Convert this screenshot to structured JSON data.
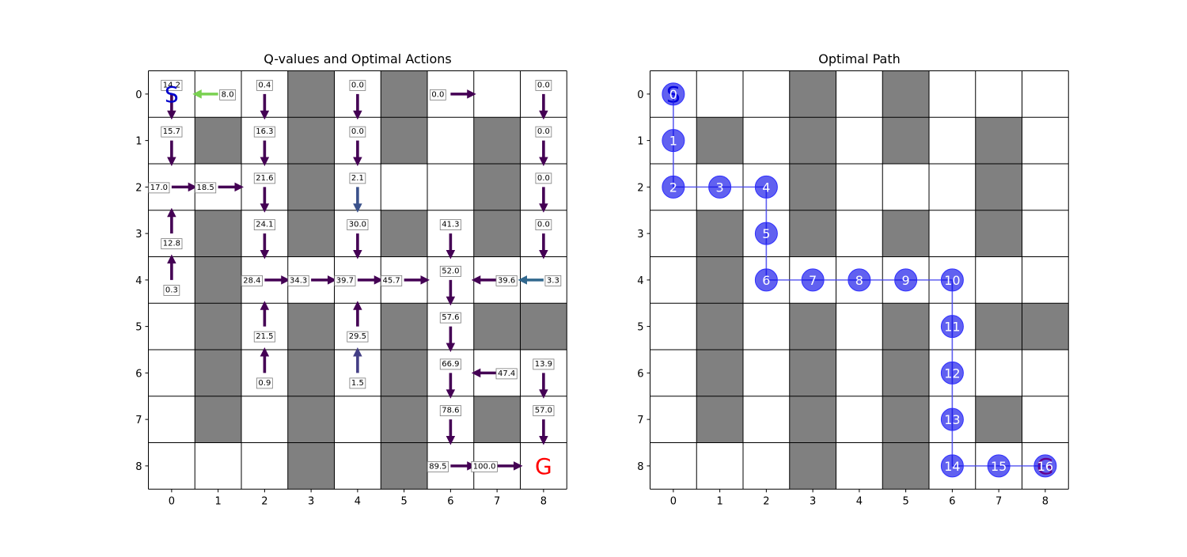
{
  "chart_data": [
    {
      "type": "grid",
      "title": "Q-values and Optimal Actions",
      "grid_size": [
        9,
        9
      ],
      "x_ticks": [
        "0",
        "1",
        "2",
        "3",
        "4",
        "5",
        "6",
        "7",
        "8"
      ],
      "y_ticks": [
        "0",
        "1",
        "2",
        "3",
        "4",
        "5",
        "6",
        "7",
        "8"
      ],
      "obstacles": [
        [
          0,
          3
        ],
        [
          0,
          5
        ],
        [
          1,
          1
        ],
        [
          1,
          3
        ],
        [
          1,
          5
        ],
        [
          1,
          7
        ],
        [
          2,
          3
        ],
        [
          2,
          7
        ],
        [
          3,
          1
        ],
        [
          3,
          3
        ],
        [
          3,
          5
        ],
        [
          3,
          7
        ],
        [
          4,
          1
        ],
        [
          5,
          1
        ],
        [
          5,
          3
        ],
        [
          5,
          5
        ],
        [
          5,
          7
        ],
        [
          5,
          8
        ],
        [
          6,
          1
        ],
        [
          6,
          3
        ],
        [
          6,
          5
        ],
        [
          7,
          1
        ],
        [
          7,
          3
        ],
        [
          7,
          5
        ],
        [
          7,
          7
        ],
        [
          8,
          3
        ],
        [
          8,
          5
        ]
      ],
      "start": {
        "row": 0,
        "col": 0,
        "label": "S",
        "color": "#0000cc"
      },
      "goal": {
        "row": 8,
        "col": 8,
        "label": "G",
        "color": "#ff0000"
      },
      "actions": [
        {
          "row": 0,
          "col": 0,
          "dir": "down",
          "q": "14.2",
          "color": "#440154"
        },
        {
          "row": 0,
          "col": 1,
          "dir": "left",
          "q": "8.0",
          "color": "#7ad151"
        },
        {
          "row": 0,
          "col": 2,
          "dir": "down",
          "q": "0.4",
          "color": "#440154"
        },
        {
          "row": 0,
          "col": 4,
          "dir": "down",
          "q": "0.0",
          "color": "#440154"
        },
        {
          "row": 0,
          "col": 6,
          "dir": "right",
          "q": "0.0",
          "color": "#440154"
        },
        {
          "row": 0,
          "col": 8,
          "dir": "down",
          "q": "0.0",
          "color": "#440154"
        },
        {
          "row": 1,
          "col": 0,
          "dir": "down",
          "q": "15.7",
          "color": "#440154"
        },
        {
          "row": 1,
          "col": 2,
          "dir": "down",
          "q": "16.3",
          "color": "#440154"
        },
        {
          "row": 1,
          "col": 4,
          "dir": "down",
          "q": "0.0",
          "color": "#440154"
        },
        {
          "row": 1,
          "col": 8,
          "dir": "down",
          "q": "0.0",
          "color": "#440154"
        },
        {
          "row": 2,
          "col": 0,
          "dir": "right",
          "q": "17.0",
          "color": "#440154"
        },
        {
          "row": 2,
          "col": 1,
          "dir": "right",
          "q": "18.5",
          "color": "#440154"
        },
        {
          "row": 2,
          "col": 2,
          "dir": "down",
          "q": "21.6",
          "color": "#440154"
        },
        {
          "row": 2,
          "col": 4,
          "dir": "down",
          "q": "2.1",
          "color": "#3b528b"
        },
        {
          "row": 2,
          "col": 8,
          "dir": "down",
          "q": "0.0",
          "color": "#440154"
        },
        {
          "row": 3,
          "col": 0,
          "dir": "up",
          "q": "12.8",
          "color": "#440154"
        },
        {
          "row": 3,
          "col": 2,
          "dir": "down",
          "q": "24.1",
          "color": "#440154"
        },
        {
          "row": 3,
          "col": 4,
          "dir": "down",
          "q": "30.0",
          "color": "#440154"
        },
        {
          "row": 3,
          "col": 6,
          "dir": "down",
          "q": "41.3",
          "color": "#440154"
        },
        {
          "row": 3,
          "col": 8,
          "dir": "down",
          "q": "0.0",
          "color": "#440154"
        },
        {
          "row": 4,
          "col": 0,
          "dir": "up",
          "q": "0.3",
          "color": "#440154"
        },
        {
          "row": 4,
          "col": 2,
          "dir": "right",
          "q": "28.4",
          "color": "#440154"
        },
        {
          "row": 4,
          "col": 3,
          "dir": "right",
          "q": "34.3",
          "color": "#440154"
        },
        {
          "row": 4,
          "col": 4,
          "dir": "right",
          "q": "39.7",
          "color": "#440154"
        },
        {
          "row": 4,
          "col": 5,
          "dir": "right",
          "q": "45.7",
          "color": "#440154"
        },
        {
          "row": 4,
          "col": 6,
          "dir": "down",
          "q": "52.0",
          "color": "#440154"
        },
        {
          "row": 4,
          "col": 7,
          "dir": "left",
          "q": "39.6",
          "color": "#440154"
        },
        {
          "row": 4,
          "col": 8,
          "dir": "left",
          "q": "3.3",
          "color": "#31688e"
        },
        {
          "row": 5,
          "col": 2,
          "dir": "up",
          "q": "21.5",
          "color": "#440154"
        },
        {
          "row": 5,
          "col": 4,
          "dir": "up",
          "q": "29.5",
          "color": "#440154"
        },
        {
          "row": 5,
          "col": 6,
          "dir": "down",
          "q": "57.6",
          "color": "#440154"
        },
        {
          "row": 6,
          "col": 2,
          "dir": "up",
          "q": "0.9",
          "color": "#440154"
        },
        {
          "row": 6,
          "col": 4,
          "dir": "up",
          "q": "1.5",
          "color": "#433e85"
        },
        {
          "row": 6,
          "col": 6,
          "dir": "down",
          "q": "66.9",
          "color": "#440154"
        },
        {
          "row": 6,
          "col": 7,
          "dir": "left",
          "q": "47.4",
          "color": "#440154"
        },
        {
          "row": 6,
          "col": 8,
          "dir": "down",
          "q": "13.9",
          "color": "#440154"
        },
        {
          "row": 7,
          "col": 6,
          "dir": "down",
          "q": "78.6",
          "color": "#440154"
        },
        {
          "row": 7,
          "col": 8,
          "dir": "down",
          "q": "57.0",
          "color": "#440154"
        },
        {
          "row": 8,
          "col": 6,
          "dir": "right",
          "q": "89.5",
          "color": "#440154"
        },
        {
          "row": 8,
          "col": 7,
          "dir": "right",
          "q": "100.0",
          "color": "#440154"
        }
      ]
    },
    {
      "type": "grid",
      "title": "Optimal Path",
      "grid_size": [
        9,
        9
      ],
      "x_ticks": [
        "0",
        "1",
        "2",
        "3",
        "4",
        "5",
        "6",
        "7",
        "8"
      ],
      "y_ticks": [
        "0",
        "1",
        "2",
        "3",
        "4",
        "5",
        "6",
        "7",
        "8"
      ],
      "obstacles": [
        [
          0,
          3
        ],
        [
          0,
          5
        ],
        [
          1,
          1
        ],
        [
          1,
          3
        ],
        [
          1,
          5
        ],
        [
          1,
          7
        ],
        [
          2,
          3
        ],
        [
          2,
          7
        ],
        [
          3,
          1
        ],
        [
          3,
          3
        ],
        [
          3,
          5
        ],
        [
          3,
          7
        ],
        [
          4,
          1
        ],
        [
          5,
          1
        ],
        [
          5,
          3
        ],
        [
          5,
          5
        ],
        [
          5,
          7
        ],
        [
          5,
          8
        ],
        [
          6,
          1
        ],
        [
          6,
          3
        ],
        [
          6,
          5
        ],
        [
          7,
          1
        ],
        [
          7,
          3
        ],
        [
          7,
          5
        ],
        [
          7,
          7
        ],
        [
          8,
          3
        ],
        [
          8,
          5
        ]
      ],
      "start": {
        "row": 0,
        "col": 0,
        "label": "S",
        "color": "#0000cc"
      },
      "goal": {
        "row": 8,
        "col": 8,
        "label": "G",
        "color": "#ff0000"
      },
      "path_color": "#4444ee",
      "path": [
        {
          "row": 0,
          "col": 0,
          "label": "0"
        },
        {
          "row": 1,
          "col": 0,
          "label": "1"
        },
        {
          "row": 2,
          "col": 0,
          "label": "2"
        },
        {
          "row": 2,
          "col": 1,
          "label": "3"
        },
        {
          "row": 2,
          "col": 2,
          "label": "4"
        },
        {
          "row": 3,
          "col": 2,
          "label": "5"
        },
        {
          "row": 4,
          "col": 2,
          "label": "6"
        },
        {
          "row": 4,
          "col": 3,
          "label": "7"
        },
        {
          "row": 4,
          "col": 4,
          "label": "8"
        },
        {
          "row": 4,
          "col": 5,
          "label": "9"
        },
        {
          "row": 4,
          "col": 6,
          "label": "10"
        },
        {
          "row": 5,
          "col": 6,
          "label": "11"
        },
        {
          "row": 6,
          "col": 6,
          "label": "12"
        },
        {
          "row": 7,
          "col": 6,
          "label": "13"
        },
        {
          "row": 8,
          "col": 6,
          "label": "14"
        },
        {
          "row": 8,
          "col": 7,
          "label": "15"
        },
        {
          "row": 8,
          "col": 8,
          "label": "16"
        }
      ]
    }
  ]
}
